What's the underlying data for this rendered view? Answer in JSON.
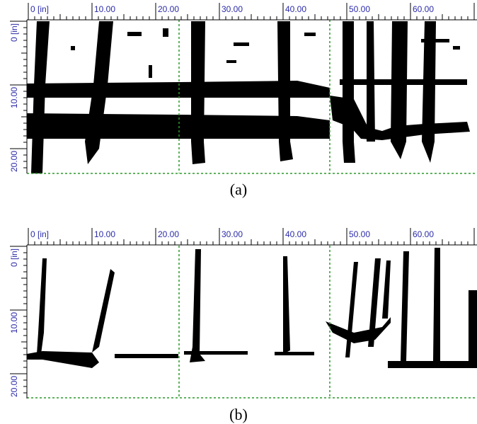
{
  "panels": [
    {
      "caption": "(a)",
      "x_ruler": [
        "0 [in]",
        "10.00",
        "20.00",
        "30.00",
        "40.00",
        "50.00",
        "60.00"
      ],
      "y_ruler": [
        "0 [in]",
        "10.00",
        "20.00"
      ]
    },
    {
      "caption": "(b)",
      "x_ruler": [
        "0 [in]",
        "10.00",
        "20.00",
        "30.00",
        "40.00",
        "50.00",
        "60.00"
      ],
      "y_ruler": [
        "0 [in]",
        "10.00",
        "20.00"
      ]
    }
  ]
}
